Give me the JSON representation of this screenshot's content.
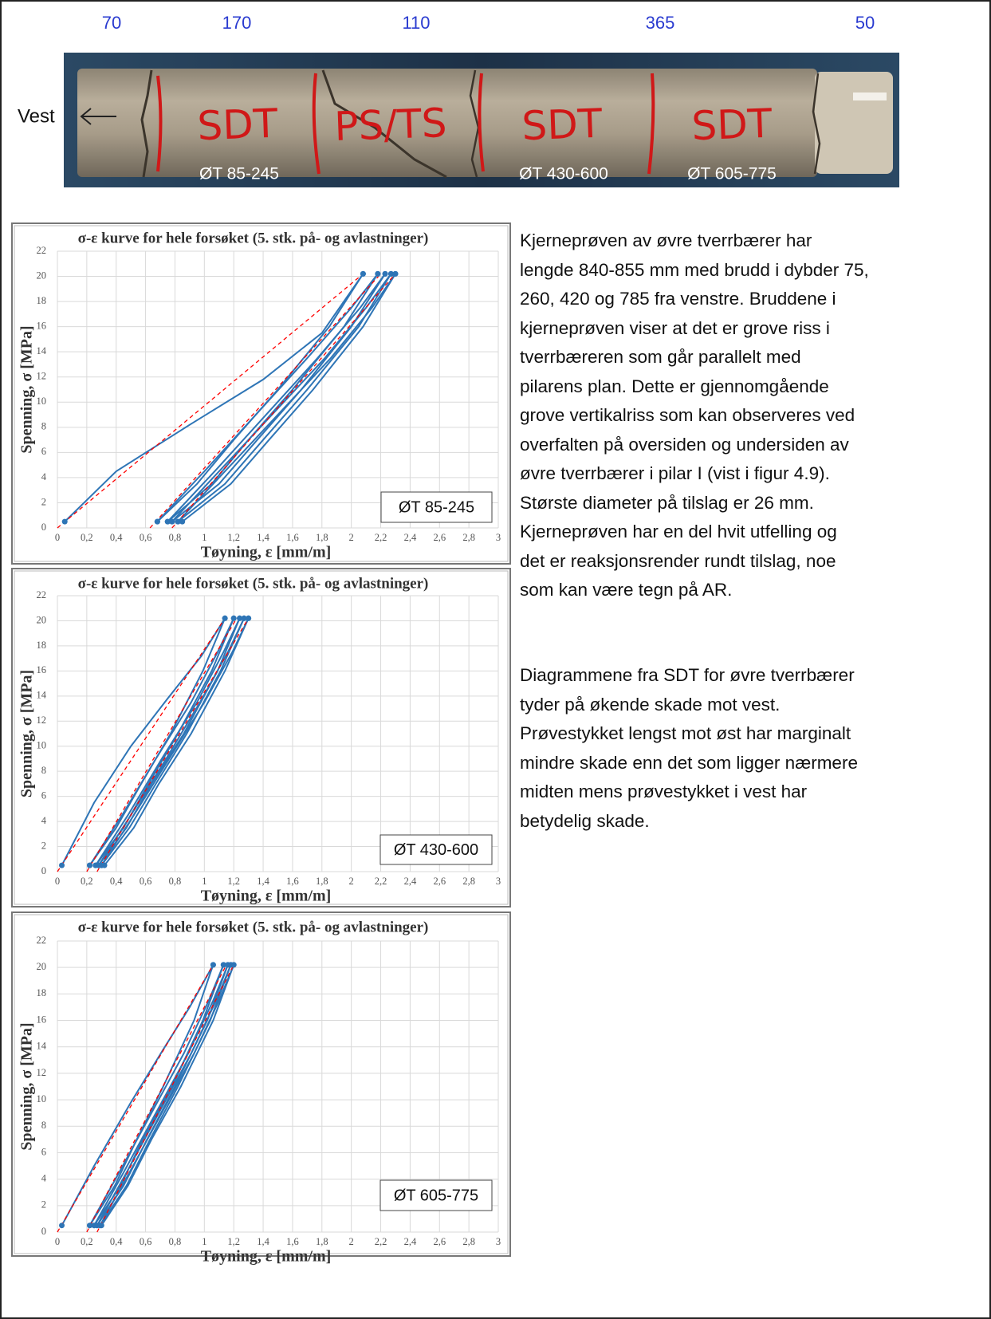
{
  "header": {
    "segment_lengths": [
      "70",
      "170",
      "110",
      "365",
      "50"
    ]
  },
  "photo": {
    "direction_label": "Vest",
    "markings": [
      "SDT",
      "PS/TS",
      "SDT",
      "SDT"
    ],
    "sample_labels": [
      "ØT 85-245",
      "ØT 430-600",
      "ØT 605-775"
    ]
  },
  "chart_data": [
    {
      "type": "line",
      "title": "σ-ε kurve for hele forsøket (5. stk. på- og avlastninger)",
      "ylabel": "Spenning, σ [MPa]",
      "xlabel": "Tøyning, ε [mm/m]",
      "annotation": "ØT 85-245",
      "xlim": [
        0,
        3
      ],
      "ylim": [
        0,
        22
      ],
      "grid": true,
      "xticks": [
        0,
        {
          "value": 0.2,
          "label": "0,2"
        },
        {
          "value": 0.4,
          "label": "0,4"
        },
        {
          "value": 0.6,
          "label": "0,6"
        },
        {
          "value": 0.8,
          "label": "0,8"
        },
        1,
        {
          "value": 1.2,
          "label": "1,2"
        },
        {
          "value": 1.4,
          "label": "1,4"
        },
        {
          "value": 1.6,
          "label": "1,6"
        },
        {
          "value": 1.8,
          "label": "1,8"
        },
        2,
        {
          "value": 2.2,
          "label": "2,2"
        },
        {
          "value": 2.4,
          "label": "2,4"
        },
        {
          "value": 2.6,
          "label": "2,6"
        },
        {
          "value": 2.8,
          "label": "2,8"
        },
        3
      ],
      "yticks": [
        0,
        2,
        4,
        6,
        8,
        10,
        12,
        14,
        16,
        18,
        20,
        22
      ],
      "series": [
        {
          "color": "#2e75b6",
          "x": [
            0.05,
            0.4,
            0.9,
            1.4,
            1.8,
            2.08
          ],
          "values": [
            0.5,
            4.5,
            8.2,
            11.8,
            15.5,
            20.2
          ]
        },
        {
          "color": "#2e75b6",
          "x": [
            2.08,
            1.85,
            1.5,
            1.2,
            0.95,
            0.68
          ],
          "values": [
            20.2,
            16,
            11,
            7,
            3.5,
            0.5
          ]
        },
        {
          "color": "#2e75b6",
          "x": [
            0.68,
            1.0,
            1.35,
            1.7,
            2.0,
            2.18
          ],
          "values": [
            0.5,
            4.5,
            9,
            13.5,
            17.5,
            20.2
          ]
        },
        {
          "color": "#2e75b6",
          "x": [
            2.18,
            1.95,
            1.6,
            1.3,
            1.05,
            0.75
          ],
          "values": [
            20.2,
            16,
            11,
            7,
            3.5,
            0.5
          ]
        },
        {
          "color": "#2e75b6",
          "x": [
            0.75,
            1.07,
            1.42,
            1.77,
            2.06,
            2.23
          ],
          "values": [
            0.5,
            4.5,
            9,
            13.5,
            17.5,
            20.2
          ]
        },
        {
          "color": "#2e75b6",
          "x": [
            2.23,
            2.0,
            1.66,
            1.36,
            1.1,
            0.78
          ],
          "values": [
            20.2,
            16,
            11,
            7,
            3.5,
            0.5
          ]
        },
        {
          "color": "#2e75b6",
          "x": [
            0.78,
            1.1,
            1.46,
            1.82,
            2.1,
            2.27
          ],
          "values": [
            0.5,
            4.5,
            9,
            13.5,
            17.5,
            20.2
          ]
        },
        {
          "color": "#2e75b6",
          "x": [
            2.27,
            2.05,
            1.7,
            1.4,
            1.14,
            0.82
          ],
          "values": [
            20.2,
            16,
            11,
            7,
            3.5,
            0.5
          ]
        },
        {
          "color": "#2e75b6",
          "x": [
            0.82,
            1.14,
            1.5,
            1.86,
            2.14,
            2.3
          ],
          "values": [
            0.5,
            4.5,
            9,
            13.5,
            17.5,
            20.2
          ]
        },
        {
          "color": "#2e75b6",
          "x": [
            2.3,
            2.08,
            1.74,
            1.44,
            1.18,
            0.85
          ],
          "values": [
            20.2,
            16,
            11,
            7,
            3.5,
            0.5
          ]
        },
        {
          "color": "#ff0000",
          "dashed": true,
          "x": [
            0,
            2.08
          ],
          "values": [
            0,
            20.2
          ]
        },
        {
          "color": "#ff0000",
          "dashed": true,
          "x": [
            0.63,
            2.2
          ],
          "values": [
            0,
            20.2
          ]
        },
        {
          "color": "#ff0000",
          "dashed": true,
          "x": [
            0.78,
            2.3
          ],
          "values": [
            0,
            20.2
          ]
        }
      ]
    },
    {
      "type": "line",
      "title": "σ-ε kurve for hele forsøket (5. stk. på- og avlastninger)",
      "ylabel": "Spenning, σ [MPa]",
      "xlabel": "Tøyning, ε [mm/m]",
      "annotation": "ØT 430-600",
      "xlim": [
        0,
        3
      ],
      "ylim": [
        0,
        22
      ],
      "grid": true,
      "xticks": [
        0,
        {
          "value": 0.2,
          "label": "0,2"
        },
        {
          "value": 0.4,
          "label": "0,4"
        },
        {
          "value": 0.6,
          "label": "0,6"
        },
        {
          "value": 0.8,
          "label": "0,8"
        },
        1,
        {
          "value": 1.2,
          "label": "1,2"
        },
        {
          "value": 1.4,
          "label": "1,4"
        },
        {
          "value": 1.6,
          "label": "1,6"
        },
        {
          "value": 1.8,
          "label": "1,8"
        },
        2,
        {
          "value": 2.2,
          "label": "2,2"
        },
        {
          "value": 2.4,
          "label": "2,4"
        },
        {
          "value": 2.6,
          "label": "2,6"
        },
        {
          "value": 2.8,
          "label": "2,8"
        },
        3
      ],
      "yticks": [
        0,
        2,
        4,
        6,
        8,
        10,
        12,
        14,
        16,
        18,
        20,
        22
      ],
      "series": [
        {
          "color": "#2e75b6",
          "x": [
            0.03,
            0.25,
            0.5,
            0.75,
            0.98,
            1.14
          ],
          "values": [
            0.5,
            5.5,
            10,
            13.8,
            17.2,
            20.2
          ]
        },
        {
          "color": "#2e75b6",
          "x": [
            1.14,
            0.99,
            0.77,
            0.57,
            0.4,
            0.22
          ],
          "values": [
            20.2,
            16,
            11,
            7,
            3.5,
            0.5
          ]
        },
        {
          "color": "#2e75b6",
          "x": [
            0.22,
            0.44,
            0.67,
            0.91,
            1.09,
            1.2
          ],
          "values": [
            0.5,
            4.5,
            9,
            13.5,
            17.5,
            20.2
          ]
        },
        {
          "color": "#2e75b6",
          "x": [
            1.2,
            1.05,
            0.82,
            0.62,
            0.45,
            0.26
          ],
          "values": [
            20.2,
            16,
            11,
            7,
            3.5,
            0.5
          ]
        },
        {
          "color": "#2e75b6",
          "x": [
            0.26,
            0.48,
            0.71,
            0.95,
            1.13,
            1.24
          ],
          "values": [
            0.5,
            4.5,
            9,
            13.5,
            17.5,
            20.2
          ]
        },
        {
          "color": "#2e75b6",
          "x": [
            1.24,
            1.09,
            0.86,
            0.64,
            0.47,
            0.28
          ],
          "values": [
            20.2,
            16,
            11,
            7,
            3.5,
            0.5
          ]
        },
        {
          "color": "#2e75b6",
          "x": [
            0.28,
            0.5,
            0.74,
            0.97,
            1.16,
            1.27
          ],
          "values": [
            0.5,
            4.5,
            9,
            13.5,
            17.5,
            20.2
          ]
        },
        {
          "color": "#2e75b6",
          "x": [
            1.27,
            1.11,
            0.88,
            0.67,
            0.49,
            0.3
          ],
          "values": [
            20.2,
            16,
            11,
            7,
            3.5,
            0.5
          ]
        },
        {
          "color": "#2e75b6",
          "x": [
            0.3,
            0.52,
            0.76,
            1.0,
            1.19,
            1.3
          ],
          "values": [
            0.5,
            4.5,
            9,
            13.5,
            17.5,
            20.2
          ]
        },
        {
          "color": "#2e75b6",
          "x": [
            1.3,
            1.14,
            0.91,
            0.69,
            0.52,
            0.32
          ],
          "values": [
            20.2,
            16,
            11,
            7,
            3.5,
            0.5
          ]
        },
        {
          "color": "#ff0000",
          "dashed": true,
          "x": [
            0,
            1.14
          ],
          "values": [
            0,
            20.2
          ]
        },
        {
          "color": "#ff0000",
          "dashed": true,
          "x": [
            0.2,
            1.22
          ],
          "values": [
            0,
            20.2
          ]
        },
        {
          "color": "#ff0000",
          "dashed": true,
          "x": [
            0.27,
            1.3
          ],
          "values": [
            0,
            20.2
          ]
        }
      ]
    },
    {
      "type": "line",
      "title": "σ-ε kurve for hele forsøket (5. stk. på- og avlastninger)",
      "ylabel": "Spenning, σ [MPa]",
      "xlabel": "Tøyning, ε [mm/m]",
      "annotation": "ØT 605-775",
      "xlim": [
        0,
        3
      ],
      "ylim": [
        0,
        22
      ],
      "grid": true,
      "xticks": [
        0,
        {
          "value": 0.2,
          "label": "0,2"
        },
        {
          "value": 0.4,
          "label": "0,4"
        },
        {
          "value": 0.6,
          "label": "0,6"
        },
        {
          "value": 0.8,
          "label": "0,8"
        },
        1,
        {
          "value": 1.2,
          "label": "1,2"
        },
        {
          "value": 1.4,
          "label": "1,4"
        },
        {
          "value": 1.6,
          "label": "1,6"
        },
        {
          "value": 1.8,
          "label": "1,8"
        },
        2,
        {
          "value": 2.2,
          "label": "2,2"
        },
        {
          "value": 2.4,
          "label": "2,4"
        },
        {
          "value": 2.6,
          "label": "2,6"
        },
        {
          "value": 2.8,
          "label": "2,8"
        },
        3
      ],
      "yticks": [
        0,
        2,
        4,
        6,
        8,
        10,
        12,
        14,
        16,
        18,
        20,
        22
      ],
      "series": [
        {
          "color": "#2e75b6",
          "x": [
            0.03,
            0.25,
            0.5,
            0.72,
            0.9,
            1.06
          ],
          "values": [
            0.5,
            5,
            9.8,
            13.8,
            17,
            20.2
          ]
        },
        {
          "color": "#2e75b6",
          "x": [
            1.06,
            0.93,
            0.72,
            0.54,
            0.39,
            0.22
          ],
          "values": [
            20.2,
            16,
            11,
            7,
            3.5,
            0.5
          ]
        },
        {
          "color": "#2e75b6",
          "x": [
            0.22,
            0.42,
            0.64,
            0.86,
            1.03,
            1.13
          ],
          "values": [
            0.5,
            4.5,
            9,
            13.5,
            17.5,
            20.2
          ]
        },
        {
          "color": "#2e75b6",
          "x": [
            1.13,
            0.99,
            0.78,
            0.58,
            0.43,
            0.25
          ],
          "values": [
            20.2,
            16,
            11,
            7,
            3.5,
            0.5
          ]
        },
        {
          "color": "#2e75b6",
          "x": [
            0.25,
            0.45,
            0.67,
            0.89,
            1.06,
            1.16
          ],
          "values": [
            0.5,
            4.5,
            9,
            13.5,
            17.5,
            20.2
          ]
        },
        {
          "color": "#2e75b6",
          "x": [
            1.16,
            1.02,
            0.8,
            0.61,
            0.45,
            0.27
          ],
          "values": [
            20.2,
            16,
            11,
            7,
            3.5,
            0.5
          ]
        },
        {
          "color": "#2e75b6",
          "x": [
            0.27,
            0.47,
            0.69,
            0.91,
            1.08,
            1.18
          ],
          "values": [
            0.5,
            4.5,
            9,
            13.5,
            17.5,
            20.2
          ]
        },
        {
          "color": "#2e75b6",
          "x": [
            1.18,
            1.04,
            0.82,
            0.63,
            0.47,
            0.29
          ],
          "values": [
            20.2,
            16,
            11,
            7,
            3.5,
            0.5
          ]
        },
        {
          "color": "#2e75b6",
          "x": [
            0.29,
            0.49,
            0.71,
            0.93,
            1.1,
            1.2
          ],
          "values": [
            0.5,
            4.5,
            9,
            13.5,
            17.5,
            20.2
          ]
        },
        {
          "color": "#2e75b6",
          "x": [
            1.2,
            1.06,
            0.84,
            0.64,
            0.48,
            0.3
          ],
          "values": [
            20.2,
            16,
            11,
            7,
            3.5,
            0.5
          ]
        },
        {
          "color": "#ff0000",
          "dashed": true,
          "x": [
            0,
            1.06
          ],
          "values": [
            0,
            20.2
          ]
        },
        {
          "color": "#ff0000",
          "dashed": true,
          "x": [
            0.2,
            1.15
          ],
          "values": [
            0,
            20.2
          ]
        },
        {
          "color": "#ff0000",
          "dashed": true,
          "x": [
            0.27,
            1.2
          ],
          "values": [
            0,
            20.2
          ]
        }
      ]
    }
  ],
  "text": {
    "paragraphs": [
      [
        "Kjerneprøven av øvre tverrbærer har",
        "lengde 840-855 mm med brudd i dybder 75,",
        "260, 420 og 785 fra venstre. Bruddene i",
        "kjerneprøven viser at det er grove riss i",
        "tverrbæreren som går parallelt med",
        "pilarens plan. Dette er gjennomgående",
        "grove vertikalriss som kan observeres ved",
        "overfalten på oversiden og undersiden av",
        "øvre tverrbærer i pilar I (vist i figur 4.9).",
        "Største diameter på tilslag er 26 mm.",
        "Kjerneprøven har en del hvit utfelling og",
        "det er reaksjonsrender rundt tilslag, noe",
        "som kan være tegn på AR."
      ],
      [
        "Diagrammene fra SDT for øvre tverrbærer",
        "tyder på økende skade mot vest.",
        "Prøvestykket lengst mot øst har marginalt",
        "mindre skade enn det som ligger nærmere",
        "midten mens prøvestykket i vest har",
        "betydelig skade."
      ]
    ]
  }
}
